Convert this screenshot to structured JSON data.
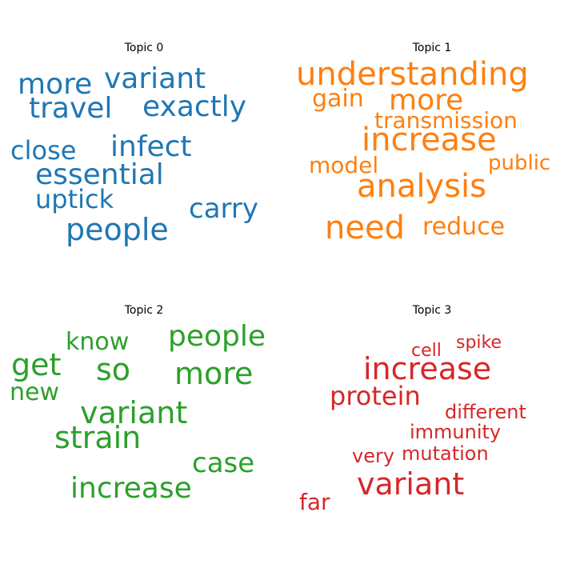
{
  "chart_data": [
    {
      "type": "wordcloud",
      "title": "Topic 0",
      "color": "#1f77b4",
      "words": [
        {
          "text": "more"
        },
        {
          "text": "variant"
        },
        {
          "text": "travel"
        },
        {
          "text": "exactly"
        },
        {
          "text": "close"
        },
        {
          "text": "infect"
        },
        {
          "text": "essential"
        },
        {
          "text": "uptick"
        },
        {
          "text": "carry"
        },
        {
          "text": "people"
        }
      ]
    },
    {
      "type": "wordcloud",
      "title": "Topic 1",
      "color": "#ff7f0e",
      "words": [
        {
          "text": "understanding"
        },
        {
          "text": "gain"
        },
        {
          "text": "more"
        },
        {
          "text": "transmission"
        },
        {
          "text": "increase"
        },
        {
          "text": "model"
        },
        {
          "text": "public"
        },
        {
          "text": "analysis"
        },
        {
          "text": "need"
        },
        {
          "text": "reduce"
        }
      ]
    },
    {
      "type": "wordcloud",
      "title": "Topic 2",
      "color": "#2ca02c",
      "words": [
        {
          "text": "know"
        },
        {
          "text": "people"
        },
        {
          "text": "get"
        },
        {
          "text": "so"
        },
        {
          "text": "more"
        },
        {
          "text": "new"
        },
        {
          "text": "variant"
        },
        {
          "text": "strain"
        },
        {
          "text": "case"
        },
        {
          "text": "increase"
        }
      ]
    },
    {
      "type": "wordcloud",
      "title": "Topic 3",
      "color": "#d62728",
      "words": [
        {
          "text": "spike"
        },
        {
          "text": "cell"
        },
        {
          "text": "increase"
        },
        {
          "text": "protein"
        },
        {
          "text": "different"
        },
        {
          "text": "immunity"
        },
        {
          "text": "very"
        },
        {
          "text": "mutation"
        },
        {
          "text": "variant"
        },
        {
          "text": "far"
        }
      ]
    }
  ]
}
